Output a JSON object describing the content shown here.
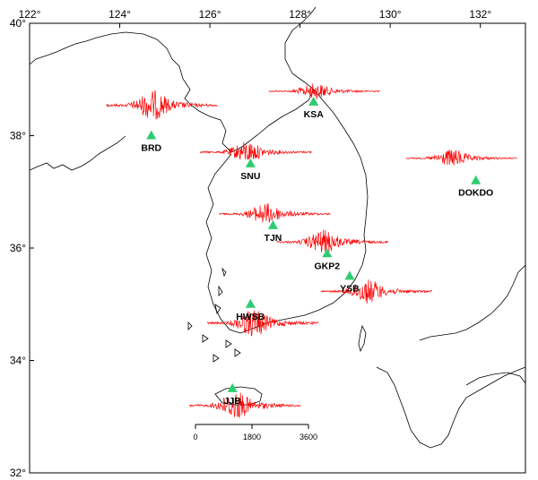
{
  "map": {
    "lon_ticks": [
      {
        "value": 122,
        "label": "122°"
      },
      {
        "value": 124,
        "label": "124°"
      },
      {
        "value": 126,
        "label": "126°"
      },
      {
        "value": 128,
        "label": "128°"
      },
      {
        "value": 130,
        "label": "130°"
      },
      {
        "value": 132,
        "label": "132°"
      }
    ],
    "lat_ticks": [
      {
        "value": 40,
        "label": "40°"
      },
      {
        "value": 38,
        "label": "38°"
      },
      {
        "value": 36,
        "label": "36°"
      },
      {
        "value": 34,
        "label": "34°"
      },
      {
        "value": 32,
        "label": "32°"
      }
    ],
    "lon_range": [
      122,
      133
    ],
    "lat_range": [
      32,
      40
    ],
    "station_color": "#2ecc71",
    "waveform_color": "#ff0000",
    "coast_color": "#000000"
  },
  "stations": [
    {
      "code": "KSA",
      "lon": 128.3,
      "lat": 38.6
    },
    {
      "code": "BRD",
      "lon": 124.7,
      "lat": 38.0
    },
    {
      "code": "SNU",
      "lon": 126.9,
      "lat": 37.5
    },
    {
      "code": "DOKDO",
      "lon": 131.9,
      "lat": 37.2
    },
    {
      "code": "TJN",
      "lon": 127.4,
      "lat": 36.4
    },
    {
      "code": "GKP2",
      "lon": 128.6,
      "lat": 35.9
    },
    {
      "code": "YSB",
      "lon": 129.1,
      "lat": 35.5
    },
    {
      "code": "HWSB",
      "lon": 126.9,
      "lat": 35.0
    },
    {
      "code": "JJB",
      "lon": 126.5,
      "lat": 33.5
    }
  ],
  "scale_bar": {
    "tick_labels": [
      "0",
      "1800",
      "3600"
    ]
  }
}
